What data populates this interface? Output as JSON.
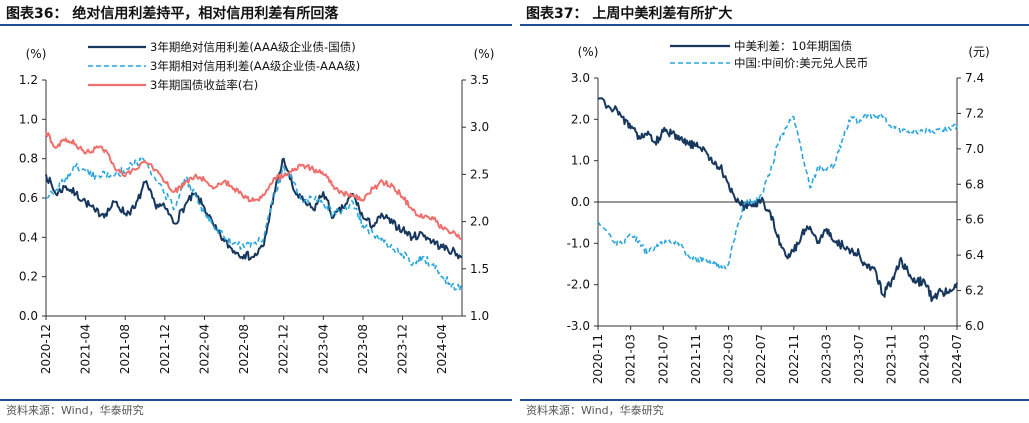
{
  "charts": [
    {
      "id": "p1",
      "title": "图表36： 绝对信用利差持平，相对信用利差有所回落",
      "source": "资料来源：Wind，华泰研究",
      "left_unit": "(%)",
      "right_unit": "(%)",
      "legend": [
        "3年期绝对信用利差(AAA级企业债-国债)",
        "3年期相对信用利差(AA级企业债-AAA级)",
        "3年期国债收益率(右)"
      ]
    },
    {
      "id": "p2",
      "title": "图表37： 上周中美利差有所扩大",
      "source": "资料来源：Wind，华泰研究",
      "left_unit": "(%)",
      "right_unit": "(元)",
      "legend": [
        "中美利差：10年期国债",
        "中国:中间价:美元兑人民币"
      ]
    }
  ],
  "chart_data": [
    {
      "type": "line",
      "title": "绝对信用利差持平，相对信用利差有所回落",
      "x_ticks": [
        "2020-12",
        "2021-04",
        "2021-08",
        "2021-12",
        "2022-04",
        "2022-08",
        "2022-12",
        "2023-04",
        "2023-08",
        "2023-12",
        "2024-04"
      ],
      "x_range": [
        "2020-12",
        "2024-06"
      ],
      "y_left": {
        "ticks": [
          0.0,
          0.2,
          0.4,
          0.6,
          0.8,
          1.0,
          1.2
        ],
        "range": [
          0.0,
          1.2
        ],
        "unit": "(%)"
      },
      "y_right": {
        "ticks": [
          1.0,
          1.5,
          2.0,
          2.5,
          3.0,
          3.5
        ],
        "range": [
          1.0,
          3.5
        ],
        "unit": "(%)"
      },
      "legend_position": "top",
      "grid": false,
      "series": [
        {
          "name": "3年期绝对信用利差(AAA级企业债-国债)",
          "axis": "left",
          "color": "#17375e",
          "style": "solid",
          "points": [
            [
              "2020-12",
              0.72
            ],
            [
              "2021-01",
              0.62
            ],
            [
              "2021-02",
              0.66
            ],
            [
              "2021-03",
              0.62
            ],
            [
              "2021-04",
              0.58
            ],
            [
              "2021-05",
              0.53
            ],
            [
              "2021-06",
              0.52
            ],
            [
              "2021-07",
              0.58
            ],
            [
              "2021-08",
              0.52
            ],
            [
              "2021-09",
              0.55
            ],
            [
              "2021-10",
              0.68
            ],
            [
              "2021-11",
              0.57
            ],
            [
              "2021-12",
              0.55
            ],
            [
              "2022-01",
              0.47
            ],
            [
              "2022-02",
              0.56
            ],
            [
              "2022-03",
              0.62
            ],
            [
              "2022-04",
              0.55
            ],
            [
              "2022-05",
              0.45
            ],
            [
              "2022-06",
              0.38
            ],
            [
              "2022-07",
              0.33
            ],
            [
              "2022-08",
              0.31
            ],
            [
              "2022-09",
              0.3
            ],
            [
              "2022-10",
              0.36
            ],
            [
              "2022-11",
              0.62
            ],
            [
              "2022-12",
              0.8
            ],
            [
              "2023-01",
              0.64
            ],
            [
              "2023-02",
              0.58
            ],
            [
              "2023-03",
              0.54
            ],
            [
              "2023-04",
              0.63
            ],
            [
              "2023-05",
              0.5
            ],
            [
              "2023-06",
              0.55
            ],
            [
              "2023-07",
              0.62
            ],
            [
              "2023-08",
              0.5
            ],
            [
              "2023-09",
              0.46
            ],
            [
              "2023-10",
              0.51
            ],
            [
              "2023-11",
              0.47
            ],
            [
              "2023-12",
              0.44
            ],
            [
              "2024-01",
              0.4
            ],
            [
              "2024-02",
              0.42
            ],
            [
              "2024-03",
              0.38
            ],
            [
              "2024-04",
              0.35
            ],
            [
              "2024-05",
              0.33
            ],
            [
              "2024-06",
              0.3
            ]
          ]
        },
        {
          "name": "3年期相对信用利差(AA级企业债-AAA级)",
          "axis": "left",
          "color": "#2aa6dc",
          "style": "dashed",
          "points": [
            [
              "2020-12",
              0.6
            ],
            [
              "2021-01",
              0.64
            ],
            [
              "2021-02",
              0.7
            ],
            [
              "2021-03",
              0.76
            ],
            [
              "2021-04",
              0.74
            ],
            [
              "2021-05",
              0.71
            ],
            [
              "2021-06",
              0.72
            ],
            [
              "2021-07",
              0.72
            ],
            [
              "2021-08",
              0.74
            ],
            [
              "2021-09",
              0.79
            ],
            [
              "2021-10",
              0.78
            ],
            [
              "2021-11",
              0.7
            ],
            [
              "2021-12",
              0.62
            ],
            [
              "2022-01",
              0.55
            ],
            [
              "2022-02",
              0.7
            ],
            [
              "2022-03",
              0.63
            ],
            [
              "2022-04",
              0.52
            ],
            [
              "2022-05",
              0.45
            ],
            [
              "2022-06",
              0.4
            ],
            [
              "2022-07",
              0.37
            ],
            [
              "2022-08",
              0.35
            ],
            [
              "2022-09",
              0.37
            ],
            [
              "2022-10",
              0.4
            ],
            [
              "2022-11",
              0.6
            ],
            [
              "2022-12",
              0.76
            ],
            [
              "2023-01",
              0.68
            ],
            [
              "2023-02",
              0.58
            ],
            [
              "2023-03",
              0.6
            ],
            [
              "2023-04",
              0.58
            ],
            [
              "2023-05",
              0.52
            ],
            [
              "2023-06",
              0.54
            ],
            [
              "2023-07",
              0.58
            ],
            [
              "2023-08",
              0.46
            ],
            [
              "2023-09",
              0.42
            ],
            [
              "2023-10",
              0.4
            ],
            [
              "2023-11",
              0.34
            ],
            [
              "2023-12",
              0.32
            ],
            [
              "2024-01",
              0.26
            ],
            [
              "2024-02",
              0.3
            ],
            [
              "2024-03",
              0.26
            ],
            [
              "2024-04",
              0.2
            ],
            [
              "2024-05",
              0.16
            ],
            [
              "2024-06",
              0.13
            ]
          ]
        },
        {
          "name": "3年期国债收益率(右)",
          "axis": "right",
          "color": "#ef6f6c",
          "style": "solid",
          "points": [
            [
              "2020-12",
              2.95
            ],
            [
              "2021-01",
              2.78
            ],
            [
              "2021-02",
              2.88
            ],
            [
              "2021-03",
              2.82
            ],
            [
              "2021-04",
              2.72
            ],
            [
              "2021-05",
              2.78
            ],
            [
              "2021-06",
              2.76
            ],
            [
              "2021-07",
              2.55
            ],
            [
              "2021-08",
              2.48
            ],
            [
              "2021-09",
              2.55
            ],
            [
              "2021-10",
              2.64
            ],
            [
              "2021-11",
              2.55
            ],
            [
              "2021-12",
              2.42
            ],
            [
              "2022-01",
              2.32
            ],
            [
              "2022-02",
              2.4
            ],
            [
              "2022-03",
              2.48
            ],
            [
              "2022-04",
              2.44
            ],
            [
              "2022-05",
              2.36
            ],
            [
              "2022-06",
              2.43
            ],
            [
              "2022-07",
              2.35
            ],
            [
              "2022-08",
              2.25
            ],
            [
              "2022-09",
              2.22
            ],
            [
              "2022-10",
              2.28
            ],
            [
              "2022-11",
              2.46
            ],
            [
              "2022-12",
              2.48
            ],
            [
              "2023-01",
              2.54
            ],
            [
              "2023-02",
              2.6
            ],
            [
              "2023-03",
              2.55
            ],
            [
              "2023-04",
              2.5
            ],
            [
              "2023-05",
              2.38
            ],
            [
              "2023-06",
              2.3
            ],
            [
              "2023-07",
              2.28
            ],
            [
              "2023-08",
              2.22
            ],
            [
              "2023-09",
              2.35
            ],
            [
              "2023-10",
              2.42
            ],
            [
              "2023-11",
              2.38
            ],
            [
              "2023-12",
              2.26
            ],
            [
              "2024-01",
              2.12
            ],
            [
              "2024-02",
              2.04
            ],
            [
              "2024-03",
              2.05
            ],
            [
              "2024-04",
              1.93
            ],
            [
              "2024-05",
              1.88
            ],
            [
              "2024-06",
              1.82
            ]
          ]
        }
      ]
    },
    {
      "type": "line",
      "title": "上周中美利差有所扩大",
      "x_ticks": [
        "2020-11",
        "2021-03",
        "2021-07",
        "2021-11",
        "2022-03",
        "2022-07",
        "2022-11",
        "2023-03",
        "2023-07",
        "2023-11",
        "2024-03",
        "2024-07"
      ],
      "x_range": [
        "2020-11",
        "2024-07"
      ],
      "y_left": {
        "ticks": [
          -3.0,
          -2.0,
          -1.0,
          0.0,
          1.0,
          2.0,
          3.0
        ],
        "range": [
          -3.0,
          3.0
        ],
        "unit": "(%)"
      },
      "y_right": {
        "ticks": [
          6.0,
          6.2,
          6.4,
          6.6,
          6.8,
          7.0,
          7.2,
          7.4
        ],
        "range": [
          6.0,
          7.4
        ],
        "unit": "(元)"
      },
      "legend_position": "top",
      "grid": false,
      "series": [
        {
          "name": "中美利差：10年期国债",
          "axis": "left",
          "color": "#17375e",
          "style": "solid",
          "points": [
            [
              "2020-11",
              2.5
            ],
            [
              "2021-01",
              2.25
            ],
            [
              "2021-02",
              2.05
            ],
            [
              "2021-03",
              1.78
            ],
            [
              "2021-04",
              1.6
            ],
            [
              "2021-05",
              1.62
            ],
            [
              "2021-06",
              1.45
            ],
            [
              "2021-07",
              1.7
            ],
            [
              "2021-08",
              1.65
            ],
            [
              "2021-09",
              1.5
            ],
            [
              "2021-10",
              1.42
            ],
            [
              "2021-11",
              1.35
            ],
            [
              "2021-12",
              1.3
            ],
            [
              "2022-01",
              0.95
            ],
            [
              "2022-02",
              0.85
            ],
            [
              "2022-03",
              0.45
            ],
            [
              "2022-04",
              0.0
            ],
            [
              "2022-05",
              -0.1
            ],
            [
              "2022-06",
              -0.05
            ],
            [
              "2022-07",
              0.05
            ],
            [
              "2022-08",
              -0.2
            ],
            [
              "2022-09",
              -0.85
            ],
            [
              "2022-10",
              -1.3
            ],
            [
              "2022-11",
              -1.2
            ],
            [
              "2022-12",
              -0.75
            ],
            [
              "2023-01",
              -0.6
            ],
            [
              "2023-02",
              -0.95
            ],
            [
              "2023-03",
              -0.65
            ],
            [
              "2023-04",
              -0.95
            ],
            [
              "2023-05",
              -1.05
            ],
            [
              "2023-06",
              -1.2
            ],
            [
              "2023-07",
              -1.25
            ],
            [
              "2023-08",
              -1.6
            ],
            [
              "2023-09",
              -1.65
            ],
            [
              "2023-10",
              -2.25
            ],
            [
              "2023-11",
              -1.9
            ],
            [
              "2023-12",
              -1.4
            ],
            [
              "2024-01",
              -1.7
            ],
            [
              "2024-02",
              -1.95
            ],
            [
              "2024-03",
              -1.9
            ],
            [
              "2024-04",
              -2.35
            ],
            [
              "2024-05",
              -2.15
            ],
            [
              "2024-06",
              -2.2
            ],
            [
              "2024-07",
              -1.95
            ]
          ]
        },
        {
          "name": "中国:中间价:美元兑人民币",
          "axis": "right",
          "color": "#2aa6dc",
          "style": "dashed",
          "points": [
            [
              "2020-11",
              6.59
            ],
            [
              "2021-01",
              6.47
            ],
            [
              "2021-02",
              6.46
            ],
            [
              "2021-03",
              6.52
            ],
            [
              "2021-04",
              6.48
            ],
            [
              "2021-05",
              6.41
            ],
            [
              "2021-06",
              6.45
            ],
            [
              "2021-07",
              6.47
            ],
            [
              "2021-08",
              6.47
            ],
            [
              "2021-09",
              6.46
            ],
            [
              "2021-10",
              6.4
            ],
            [
              "2021-11",
              6.38
            ],
            [
              "2021-12",
              6.37
            ],
            [
              "2022-01",
              6.36
            ],
            [
              "2022-02",
              6.32
            ],
            [
              "2022-03",
              6.35
            ],
            [
              "2022-04",
              6.55
            ],
            [
              "2022-05",
              6.7
            ],
            [
              "2022-06",
              6.7
            ],
            [
              "2022-07",
              6.74
            ],
            [
              "2022-08",
              6.85
            ],
            [
              "2022-09",
              7.02
            ],
            [
              "2022-10",
              7.12
            ],
            [
              "2022-11",
              7.18
            ],
            [
              "2022-12",
              6.98
            ],
            [
              "2023-01",
              6.78
            ],
            [
              "2023-02",
              6.9
            ],
            [
              "2023-03",
              6.88
            ],
            [
              "2023-04",
              6.91
            ],
            [
              "2023-05",
              7.06
            ],
            [
              "2023-06",
              7.18
            ],
            [
              "2023-07",
              7.15
            ],
            [
              "2023-08",
              7.19
            ],
            [
              "2023-09",
              7.18
            ],
            [
              "2023-10",
              7.18
            ],
            [
              "2023-11",
              7.12
            ],
            [
              "2023-12",
              7.1
            ],
            [
              "2024-01",
              7.1
            ],
            [
              "2024-02",
              7.1
            ],
            [
              "2024-03",
              7.1
            ],
            [
              "2024-04",
              7.1
            ],
            [
              "2024-05",
              7.11
            ],
            [
              "2024-06",
              7.12
            ],
            [
              "2024-07",
              7.13
            ]
          ]
        }
      ]
    }
  ]
}
